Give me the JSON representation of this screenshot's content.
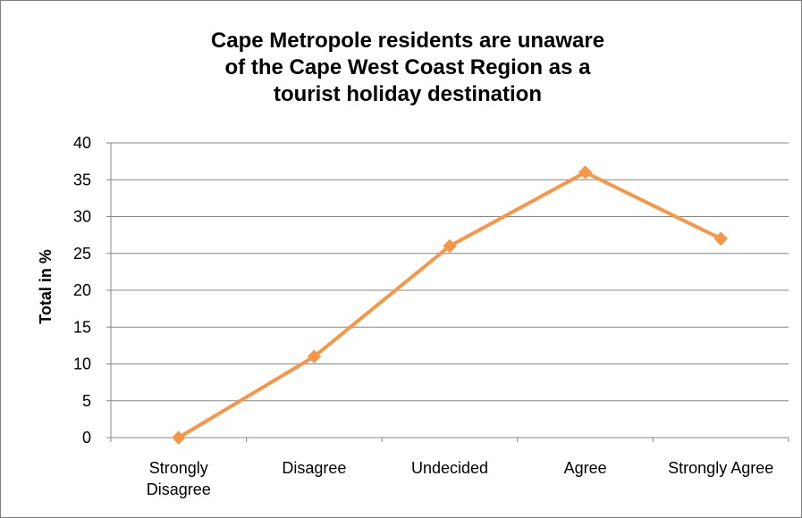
{
  "chart_data": {
    "type": "line",
    "title": "Cape Metropole residents are unaware of the Cape West Coast Region as a tourist holiday destination",
    "ylabel": "Total in %",
    "xlabel": "",
    "categories": [
      "Strongly Disagree",
      "Disagree",
      "Undecided",
      "Agree",
      "Strongly Agree"
    ],
    "series": [
      {
        "values": [
          0,
          11,
          26,
          36,
          27
        ]
      }
    ],
    "ylim": [
      0,
      40
    ],
    "yticks": [
      0,
      5,
      10,
      15,
      20,
      25,
      30,
      35,
      40
    ],
    "grid": true,
    "legend": "none",
    "colors": {
      "line": "#f79646",
      "grid": "#868686",
      "axis": "#868686"
    }
  }
}
